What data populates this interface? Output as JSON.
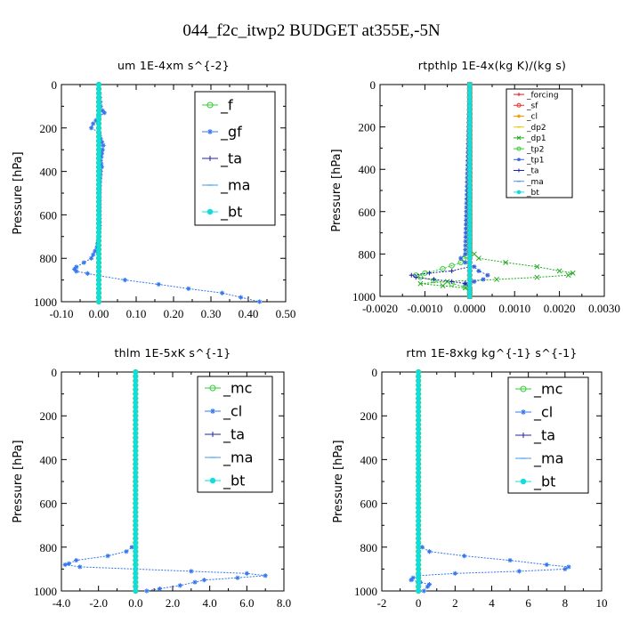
{
  "figure": {
    "title": "044_f2c_itwp2  BUDGET at355E,-5N"
  },
  "chart_data": [
    {
      "type": "line",
      "title": "um   1E-4xm s^{-2}",
      "xlabel": "",
      "ylabel": "Pressure [hPa]",
      "xlim": [
        -0.1,
        0.5
      ],
      "ylim": [
        1000,
        0
      ],
      "xticks": [
        "-0.10",
        "0.00",
        "0.10",
        "0.20",
        "0.30",
        "0.40",
        "0.50"
      ],
      "yticks": [
        "0",
        "200",
        "400",
        "600",
        "800",
        "1000"
      ],
      "legend": "top-right",
      "series": [
        {
          "name": "_f",
          "color": "#33cc33",
          "marker": "circle",
          "y": [
            0,
            1000
          ],
          "x": [
            0.0,
            0.0
          ]
        },
        {
          "name": "_gf",
          "color": "#3377ee",
          "marker": "star",
          "y": [
            0,
            100,
            120,
            130,
            150,
            180,
            200,
            220,
            250,
            280,
            300,
            350,
            380,
            400,
            450,
            500,
            550,
            600,
            650,
            700,
            750,
            800,
            820,
            840,
            850,
            860,
            870,
            880,
            900,
            920,
            940,
            960,
            980,
            1000
          ],
          "x": [
            0.0,
            0.005,
            0.01,
            0.015,
            0.0,
            -0.015,
            -0.02,
            0.0,
            0.005,
            0.012,
            0.01,
            0.005,
            0.008,
            0.005,
            0.003,
            0.002,
            0.002,
            0.002,
            0.002,
            0.0,
            -0.005,
            -0.02,
            -0.04,
            -0.06,
            -0.065,
            -0.06,
            -0.03,
            0.0,
            0.07,
            0.16,
            0.24,
            0.33,
            0.38,
            0.43
          ]
        },
        {
          "name": "_ta",
          "color": "#2222aa",
          "marker": "plus",
          "y": [
            0,
            1000
          ],
          "x": [
            0.0,
            0.0
          ]
        },
        {
          "name": "_ma",
          "color": "#4499ee",
          "marker": "dash",
          "y": [
            0,
            1000
          ],
          "x": [
            0.0,
            0.0
          ]
        },
        {
          "name": "_bt",
          "color": "#11dddd",
          "marker": "dot",
          "y": [
            0,
            1000
          ],
          "x": [
            0.0,
            0.0
          ]
        }
      ]
    },
    {
      "type": "line",
      "title": "rtpthlp   1E-4x(kg K)/(kg s)",
      "xlabel": "",
      "ylabel": "Pressure [hPa]",
      "xlim": [
        -0.002,
        0.003
      ],
      "ylim": [
        1000,
        0
      ],
      "xticks": [
        "-0.0020",
        "-0.0010",
        "0.0000",
        "0.0010",
        "0.0020",
        "0.0030"
      ],
      "yticks": [
        "0",
        "200",
        "400",
        "600",
        "800",
        "1000"
      ],
      "legend": "top-right",
      "series": [
        {
          "name": "_forcing",
          "color": "#dd2222",
          "marker": "plus",
          "y": [
            0,
            1000
          ],
          "x": [
            0.0,
            0.0
          ]
        },
        {
          "name": "_sf",
          "color": "#ee3333",
          "marker": "circle",
          "y": [
            0,
            1000
          ],
          "x": [
            0.0,
            0.0
          ]
        },
        {
          "name": "_cl",
          "color": "#ff9900",
          "marker": "star",
          "y": [
            0,
            1000
          ],
          "x": [
            0.0,
            0.0
          ]
        },
        {
          "name": "_dp2",
          "color": "#ddcc00",
          "marker": "dash",
          "y": [
            0,
            1000
          ],
          "x": [
            0.0,
            0.0
          ]
        },
        {
          "name": "_dp1",
          "color": "#22aa22",
          "marker": "cross",
          "y": [
            0,
            780,
            820,
            840,
            860,
            880,
            890,
            900,
            910,
            920,
            930,
            940,
            950,
            960,
            980,
            1000
          ],
          "x": [
            0.0,
            0.0,
            0.0002,
            0.0008,
            0.0015,
            0.002,
            0.0023,
            0.0022,
            0.0015,
            0.0006,
            -0.0005,
            -0.0011,
            -0.0006,
            -0.0001,
            0.0,
            0.0
          ]
        },
        {
          "name": "_tp2",
          "color": "#33cc33",
          "marker": "circle",
          "y": [
            0,
            790,
            840,
            870,
            890,
            900,
            910,
            925,
            940,
            955,
            970,
            1000
          ],
          "x": [
            0.0,
            0.0,
            -0.0002,
            -0.0006,
            -0.001,
            -0.0012,
            -0.0011,
            -0.0008,
            -0.0004,
            -0.0001,
            0.0,
            0.0
          ]
        },
        {
          "name": "_tp1",
          "color": "#3366dd",
          "marker": "star",
          "y": [
            0,
            800,
            820,
            840,
            860,
            880,
            900,
            920,
            930,
            940,
            960,
            1000
          ],
          "x": [
            0.0,
            -0.0001,
            -0.0002,
            -0.0001,
            0.0001,
            0.0002,
            0.0004,
            0.0003,
            0.0001,
            -0.0001,
            0.0,
            0.0
          ]
        },
        {
          "name": "_ta",
          "color": "#2222aa",
          "marker": "plus",
          "y": [
            0,
            860,
            880,
            890,
            900,
            910,
            920,
            930,
            940,
            960,
            1000
          ],
          "x": [
            0.0,
            0.0,
            -0.0004,
            -0.0009,
            -0.0013,
            -0.0012,
            -0.0008,
            -0.0004,
            -0.0001,
            0.0,
            0.0
          ]
        },
        {
          "name": "_ma",
          "color": "#4499ee",
          "marker": "dash",
          "y": [
            0,
            1000
          ],
          "x": [
            0.0,
            0.0
          ]
        },
        {
          "name": "_bt",
          "color": "#11dddd",
          "marker": "dot",
          "y": [
            0,
            1000
          ],
          "x": [
            0.0,
            0.0
          ]
        }
      ]
    },
    {
      "type": "line",
      "title": "thlm   1E-5xK s^{-1}",
      "xlabel": "",
      "ylabel": "Pressure [hPa]",
      "xlim": [
        -4.0,
        8.0
      ],
      "ylim": [
        1000,
        0
      ],
      "xticks": [
        "-4.0",
        "-2.0",
        "0.0",
        "2.0",
        "4.0",
        "6.0",
        "8.0"
      ],
      "yticks": [
        "0",
        "200",
        "400",
        "600",
        "800",
        "1000"
      ],
      "legend": "top-right",
      "series": [
        {
          "name": "_mc",
          "color": "#33cc33",
          "marker": "circle",
          "y": [
            0,
            1000
          ],
          "x": [
            0.0,
            0.0
          ]
        },
        {
          "name": "_cl",
          "color": "#3377ee",
          "marker": "star",
          "y": [
            0,
            780,
            800,
            820,
            840,
            860,
            875,
            880,
            890,
            900,
            910,
            920,
            930,
            940,
            950,
            960,
            975,
            990,
            1000
          ],
          "x": [
            0.0,
            0.0,
            -0.2,
            -0.5,
            -1.5,
            -3.2,
            -3.6,
            -3.8,
            -3.0,
            0.0,
            3.0,
            6.0,
            7.0,
            5.5,
            3.7,
            3.2,
            2.4,
            1.3,
            0.6
          ]
        },
        {
          "name": "_ta",
          "color": "#2222aa",
          "marker": "plus",
          "y": [
            0,
            1000
          ],
          "x": [
            0.0,
            0.0
          ]
        },
        {
          "name": "_ma",
          "color": "#4499ee",
          "marker": "dash",
          "y": [
            0,
            1000
          ],
          "x": [
            0.0,
            0.0
          ]
        },
        {
          "name": "_bt",
          "color": "#11dddd",
          "marker": "dot",
          "y": [
            0,
            1000
          ],
          "x": [
            0.0,
            0.0
          ]
        }
      ]
    },
    {
      "type": "line",
      "title": "rtm   1E-8xkg kg^{-1} s^{-1}",
      "xlabel": "",
      "ylabel": "Pressure [hPa]",
      "xlim": [
        -2,
        10
      ],
      "ylim": [
        1000,
        0
      ],
      "xticks": [
        "-2",
        "0",
        "2",
        "4",
        "6",
        "8",
        "10"
      ],
      "yticks": [
        "0",
        "200",
        "400",
        "600",
        "800",
        "1000"
      ],
      "legend": "top-right",
      "series": [
        {
          "name": "_mc",
          "color": "#33cc33",
          "marker": "circle",
          "y": [
            0,
            1000
          ],
          "x": [
            0.0,
            0.0
          ]
        },
        {
          "name": "_cl",
          "color": "#3377ee",
          "marker": "star",
          "y": [
            0,
            780,
            800,
            820,
            840,
            860,
            880,
            890,
            900,
            910,
            920,
            930,
            940,
            950,
            960,
            970,
            980,
            1000
          ],
          "x": [
            0.0,
            0.0,
            0.2,
            0.6,
            2.5,
            5.0,
            7.0,
            8.2,
            8.0,
            5.5,
            2.0,
            0.0,
            -0.3,
            -0.4,
            0.1,
            0.6,
            0.5,
            0.3
          ]
        },
        {
          "name": "_ta",
          "color": "#2222aa",
          "marker": "plus",
          "y": [
            0,
            1000
          ],
          "x": [
            0.0,
            0.0
          ]
        },
        {
          "name": "_ma",
          "color": "#4499ee",
          "marker": "dash",
          "y": [
            0,
            1000
          ],
          "x": [
            0.0,
            0.0
          ]
        },
        {
          "name": "_bt",
          "color": "#11dddd",
          "marker": "dot",
          "y": [
            0,
            1000
          ],
          "x": [
            0.0,
            0.0
          ]
        }
      ]
    }
  ]
}
